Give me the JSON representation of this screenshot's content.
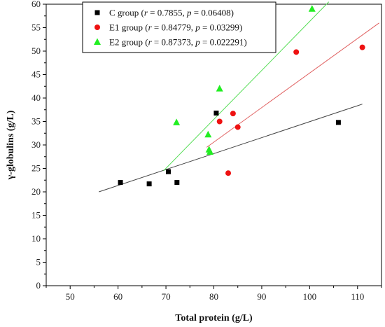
{
  "chart_data": {
    "type": "scatter",
    "title": "",
    "xlabel": "Total protein (g/L)",
    "ylabel": "γ-globulins (g/L)",
    "xlim": [
      45,
      115
    ],
    "ylim": [
      0,
      60
    ],
    "xticks": [
      50,
      60,
      70,
      80,
      90,
      100,
      110
    ],
    "yticks": [
      0,
      5,
      10,
      15,
      20,
      25,
      30,
      35,
      40,
      45,
      50,
      55,
      60
    ],
    "grid": false,
    "legend_position": "top-center",
    "series": [
      {
        "name": "C group",
        "legend_parts": [
          "C group (",
          "r",
          " = 0.7855, ",
          "p",
          " = 0.06408)"
        ],
        "marker": "square",
        "color": "#000000",
        "line_color": "#444444",
        "points": [
          [
            60.5,
            22.0
          ],
          [
            66.5,
            21.7
          ],
          [
            70.5,
            24.3
          ],
          [
            72.3,
            22.0
          ],
          [
            80.5,
            36.8
          ],
          [
            106.0,
            34.8
          ]
        ],
        "fit": [
          [
            56.0,
            20.0
          ],
          [
            111.0,
            38.7
          ]
        ]
      },
      {
        "name": "E1 group",
        "legend_parts": [
          "E1 group (",
          "r",
          " = 0.84779, ",
          "p",
          " = 0.03299)"
        ],
        "marker": "circle",
        "color": "#ee1111",
        "line_color": "#e06060",
        "points": [
          [
            81.2,
            35.0
          ],
          [
            83.0,
            24.0
          ],
          [
            84.0,
            36.7
          ],
          [
            85.0,
            33.8
          ],
          [
            97.2,
            49.8
          ],
          [
            111.0,
            50.8
          ]
        ],
        "fit": [
          [
            78.5,
            29.5
          ],
          [
            114.5,
            56.0
          ]
        ]
      },
      {
        "name": "E2 group",
        "legend_parts": [
          "E2 group (",
          "r",
          " = 0.87373, ",
          "p",
          " = 0.022291)"
        ],
        "marker": "triangle",
        "color": "#22ee22",
        "line_color": "#55dd55",
        "points": [
          [
            72.2,
            34.8
          ],
          [
            78.8,
            32.2
          ],
          [
            79.0,
            29.0
          ],
          [
            79.2,
            28.5
          ],
          [
            81.2,
            42.0
          ],
          [
            100.5,
            59.0
          ]
        ],
        "fit": [
          [
            69.5,
            24.5
          ],
          [
            104.0,
            60.5
          ]
        ]
      }
    ]
  }
}
